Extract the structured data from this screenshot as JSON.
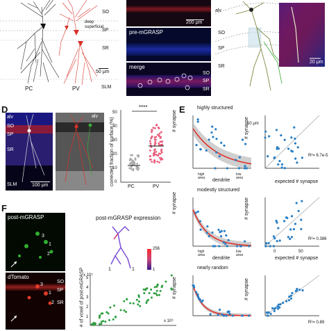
{
  "panelA": {
    "layers": {
      "so": "SO",
      "deep_superficial": "deep\nsuperficial",
      "sp": "SP",
      "sr": "SR",
      "slm": "SLM"
    },
    "scale": "50 μm",
    "cells": {
      "pc": "PC",
      "pv": "PV"
    }
  },
  "panelB": {
    "top_scale": "200 μm",
    "mid_label": "pre-mGRASP",
    "bottom_label": "merge",
    "layers": {
      "so": "SO",
      "sp": "SP",
      "sr": "SR"
    }
  },
  "panelC": {
    "alv": "alv",
    "so": "SO",
    "sp": "SP",
    "sr": "SR",
    "scale": "20 μm"
  },
  "panelD": {
    "letter": "D",
    "micro_labels": {
      "alv": "alv",
      "so": "SO",
      "sp": "SP",
      "sr": "SR",
      "slm": "SLM",
      "scale": "100 μm"
    },
    "overlay_alv": "alv",
    "significance": "****",
    "ylabel": "corrected fraction of surface (%)",
    "yticks": [
      "0",
      "10",
      "20",
      "30",
      "40",
      "50"
    ],
    "xlabels": [
      "PC",
      "PV"
    ]
  },
  "panelE": {
    "letter": "E",
    "rows": [
      {
        "title": "highly structured",
        "r2": "R²= 6.7e-5",
        "scale": "50 μm"
      },
      {
        "title": "modestly structured",
        "r2": "R²= 0.386"
      },
      {
        "title": "nearly random",
        "r2": "R²= 0.89"
      }
    ],
    "ylabel": "# synapse",
    "xlabel_left": "dendrite",
    "high_area": "high\narea",
    "low_area": "low\narea",
    "xlabel_right": "expected # synapse",
    "right_ticks": [
      "0",
      "50"
    ]
  },
  "panelF": {
    "letter": "F",
    "top_label": "post-mGRASP",
    "bottom_label": "dTomato",
    "chart_title": "post-mGRASP expression",
    "ylabel": "# of voxel of post-mGRASP",
    "y_exponent": "x 10⁵",
    "x_exponent": "x 10⁵",
    "colorbar_max": "256",
    "colorbar_min": "1",
    "cell_numbers": [
      "1",
      "2",
      "3"
    ],
    "micro_layers": {
      "so": "SO",
      "sp": "SP",
      "sr": "SR"
    },
    "yticks": [
      "1",
      "2",
      "3",
      "4",
      "5"
    ],
    "xticks": [
      "2",
      "4",
      "6",
      "8"
    ]
  },
  "colors": {
    "pv_red": "#d8322a",
    "pc_black": "#222222",
    "data_blue": "#2a7fc4",
    "band_red": "#e0302a",
    "scatter_green": "#2e9e3e",
    "magenta": "#c8467c"
  }
}
